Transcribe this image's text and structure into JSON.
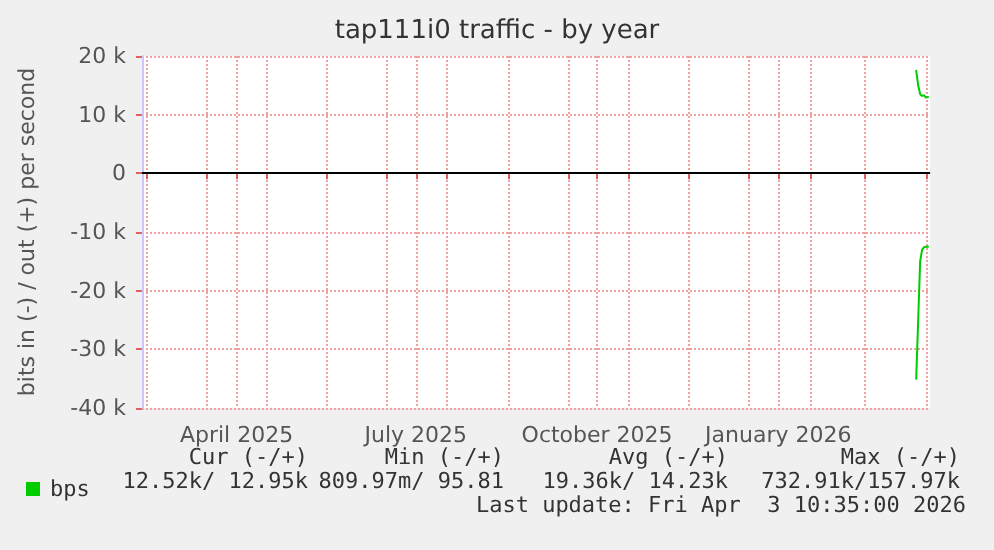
{
  "chart_data": {
    "type": "line",
    "title": "tap111i0 traffic - by year",
    "ylabel": "bits in (-) / out (+) per second",
    "xlim": [
      "2025-02-27",
      "2026-04-03"
    ],
    "xticks": [
      {
        "value": "2025-03-01",
        "label": null
      },
      {
        "value": "2025-04-01",
        "label": null
      },
      {
        "value": "2025-04-16",
        "label": "April 2025"
      },
      {
        "value": "2025-05-01",
        "label": null
      },
      {
        "value": "2025-06-01",
        "label": null
      },
      {
        "value": "2025-07-01",
        "label": null
      },
      {
        "value": "2025-07-16",
        "label": "July 2025"
      },
      {
        "value": "2025-08-01",
        "label": null
      },
      {
        "value": "2025-09-01",
        "label": null
      },
      {
        "value": "2025-10-01",
        "label": null
      },
      {
        "value": "2025-10-16",
        "label": "October 2025"
      },
      {
        "value": "2025-11-01",
        "label": null
      },
      {
        "value": "2025-12-01",
        "label": null
      },
      {
        "value": "2026-01-01",
        "label": null
      },
      {
        "value": "2026-01-16",
        "label": "January 2026"
      },
      {
        "value": "2026-02-01",
        "label": null
      },
      {
        "value": "2026-03-01",
        "label": null
      },
      {
        "value": "2026-04-01",
        "label": null
      }
    ],
    "ylim": [
      -40000,
      20000
    ],
    "yticks": [
      {
        "value": -40000,
        "label": "-40 k"
      },
      {
        "value": -30000,
        "label": "-30 k"
      },
      {
        "value": -20000,
        "label": "-20 k"
      },
      {
        "value": -10000,
        "label": "-10 k"
      },
      0,
      {
        "value": 10000,
        "label": "10 k"
      },
      {
        "value": 20000,
        "label": "20 k"
      }
    ],
    "grid": true,
    "legend": "bottom left",
    "marker": "none",
    "line_style": "solid",
    "ref_lines": [
      {
        "axis": "y",
        "value": 0,
        "color": "#000000"
      }
    ],
    "series": [
      {
        "name": "bps",
        "color": "#00cc00",
        "x": [
          "2026-03-27",
          "2026-03-28",
          "2026-03-29",
          "2026-03-30",
          "2026-03-31",
          "2026-04-01",
          "2026-04-02"
        ],
        "values": [
          17500,
          15000,
          13500,
          13200,
          13300,
          12900,
          13000
        ]
      },
      {
        "color": "#00cc00",
        "x": [
          "2026-03-27",
          "2026-03-28",
          "2026-03-29",
          "2026-03-30",
          "2026-03-31",
          "2026-04-01",
          "2026-04-02"
        ],
        "values": [
          -35000,
          -25000,
          -15000,
          -13000,
          -12600,
          -12500,
          -12500
        ]
      }
    ],
    "annotations": [
      "Cur (-/+)",
      "Min (-/+)",
      "Avg (-/+)",
      "Max (-/+)",
      "12.52k/ 12.95k",
      "809.97m/ 95.81",
      "19.36k/ 14.23k",
      "732.91k/157.97k",
      "Last update: Fri Apr  3 10:35:00 2026"
    ]
  }
}
